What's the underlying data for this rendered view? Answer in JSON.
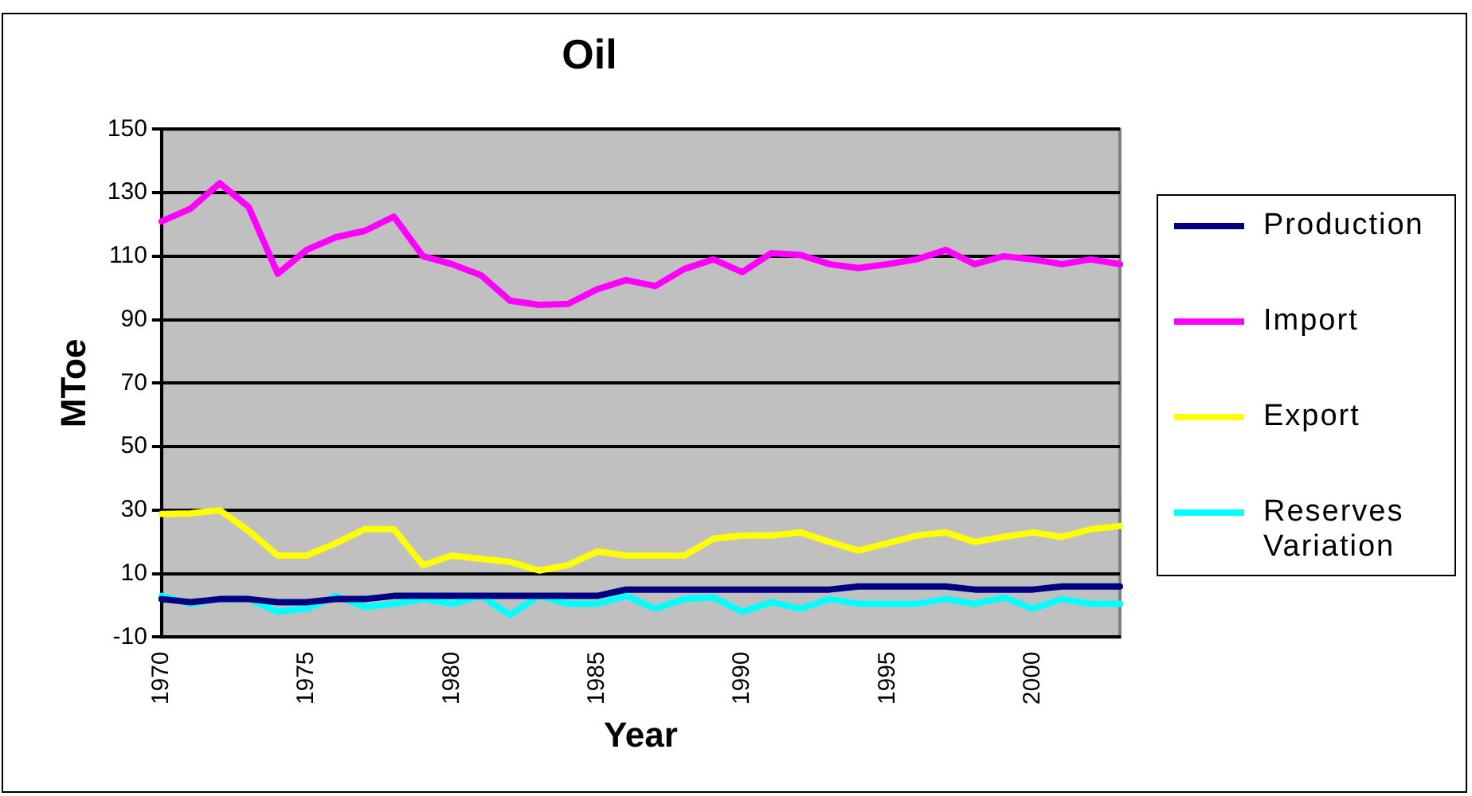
{
  "chart_data": {
    "type": "line",
    "title": "Oil",
    "xlabel": "Year",
    "ylabel": "MToe",
    "categories": [
      "1970",
      null,
      null,
      null,
      null,
      "1975",
      null,
      null,
      null,
      null,
      "1980",
      null,
      null,
      null,
      null,
      "1985",
      null,
      null,
      null,
      null,
      "1990",
      null,
      null,
      null,
      null,
      "1995",
      null,
      null,
      null,
      null,
      "2000",
      null,
      null,
      null
    ],
    "series": [
      {
        "name": "Production",
        "color": "#000080",
        "values": [
          2,
          1,
          2,
          2,
          1,
          1,
          2,
          2,
          3,
          3,
          3,
          3,
          3,
          3,
          3,
          3,
          5,
          5,
          5,
          5,
          5,
          5,
          5,
          5,
          6,
          6,
          6,
          6,
          5,
          5,
          5,
          6,
          6,
          6
        ]
      },
      {
        "name": "Import",
        "color": "#ff00ff",
        "values": [
          121,
          125,
          133,
          125.5,
          104.5,
          112,
          116,
          118,
          122.5,
          110,
          107.5,
          104,
          96,
          94.7,
          95,
          99.6,
          102.5,
          100.6,
          106,
          109,
          105,
          111,
          110.4,
          107.5,
          106.3,
          107.5,
          109,
          112,
          107.5,
          110,
          109,
          107.5,
          109,
          107.5
        ]
      },
      {
        "name": "Export",
        "color": "#ffff00",
        "values": [
          28.8,
          29,
          30,
          23.5,
          15.7,
          15.7,
          19.6,
          24,
          24,
          12.7,
          15.7,
          14.7,
          13.7,
          11,
          12.7,
          17,
          15.7,
          15.7,
          15.7,
          21,
          22,
          22,
          23,
          20,
          17.3,
          19.6,
          22,
          23,
          20,
          21.6,
          23,
          21.6,
          24,
          25
        ]
      },
      {
        "name": "Reserves Variation",
        "color": "#00ffff",
        "values": [
          3,
          0.5,
          2,
          2,
          -2,
          -1,
          3,
          -0.5,
          0.5,
          2,
          0.5,
          3,
          -3,
          3,
          0.5,
          0.5,
          3,
          -1,
          2,
          2.5,
          -2,
          1,
          -1,
          2,
          0.5,
          0.5,
          0.5,
          2,
          0.5,
          2.5,
          -1,
          2,
          0.5,
          0.5
        ]
      }
    ],
    "ylim": [
      -10,
      150
    ],
    "yticks": [
      -10,
      10,
      30,
      50,
      70,
      90,
      110,
      130,
      150
    ],
    "grid": "y",
    "legend": "right",
    "marker": "none",
    "line_style": "solid"
  }
}
